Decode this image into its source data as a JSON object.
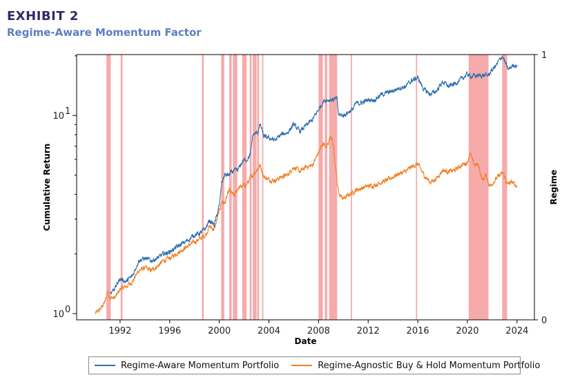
{
  "header": {
    "exhibit": "EXHIBIT 2",
    "title": "Regime-Aware Momentum Factor"
  },
  "colors": {
    "regime_aware": "#2e6fae",
    "buy_hold": "#f07f22",
    "regime_band": "#f6aaaa",
    "title_dark": "#2e2a6b",
    "title_blue": "#5b7fc0"
  },
  "chart_data": {
    "type": "line",
    "xlabel": "Date",
    "ylabel": "Cumulative Return",
    "y2label": "Regime",
    "x_range": [
      1988.5,
      2025.4
    ],
    "y_scale": "log",
    "y_range": [
      0.93,
      20.3
    ],
    "y_ticks": [
      {
        "value": 1,
        "base": "10",
        "exp": "0"
      },
      {
        "value": 10,
        "base": "10",
        "exp": "1"
      }
    ],
    "y2_range": [
      0,
      1
    ],
    "y2_ticks": [
      "0",
      "1"
    ],
    "x_ticks": [
      "1992",
      "1996",
      "2000",
      "2004",
      "2008",
      "2012",
      "2016",
      "2020",
      "2024"
    ],
    "grid": false,
    "legend_position": "bottom",
    "regime_periods": [
      [
        1990.9,
        1991.25
      ],
      [
        1992.05,
        1992.2
      ],
      [
        1998.6,
        1998.75
      ],
      [
        2000.15,
        2000.4
      ],
      [
        2000.8,
        2001.0
      ],
      [
        2001.1,
        2001.45
      ],
      [
        2001.85,
        2002.2
      ],
      [
        2002.45,
        2002.6
      ],
      [
        2002.7,
        2003.0
      ],
      [
        2003.05,
        2003.2
      ],
      [
        2003.45,
        2003.55
      ],
      [
        2008.0,
        2008.35
      ],
      [
        2008.5,
        2008.7
      ],
      [
        2008.85,
        2009.5
      ],
      [
        2010.6,
        2010.7
      ],
      [
        2015.85,
        2015.95
      ],
      [
        2020.1,
        2021.7
      ],
      [
        2022.8,
        2023.2
      ]
    ],
    "series": [
      {
        "name": "Regime-Aware Momentum Portfolio",
        "color": "#2e6fae",
        "points": [
          [
            1991.2,
            1.27
          ],
          [
            1991.6,
            1.35
          ],
          [
            1992.0,
            1.5
          ],
          [
            1992.5,
            1.45
          ],
          [
            1993.0,
            1.55
          ],
          [
            1993.5,
            1.85
          ],
          [
            1994.0,
            1.9
          ],
          [
            1994.5,
            1.85
          ],
          [
            1995.0,
            1.9
          ],
          [
            1995.5,
            2.0
          ],
          [
            1996.0,
            2.05
          ],
          [
            1996.5,
            2.15
          ],
          [
            1997.0,
            2.25
          ],
          [
            1997.5,
            2.35
          ],
          [
            1998.0,
            2.5
          ],
          [
            1998.5,
            2.55
          ],
          [
            1998.9,
            2.7
          ],
          [
            1999.2,
            2.95
          ],
          [
            1999.6,
            2.8
          ],
          [
            2000.0,
            3.5
          ],
          [
            2000.2,
            4.6
          ],
          [
            2000.45,
            5.0
          ],
          [
            2000.8,
            5.0
          ],
          [
            2001.0,
            5.2
          ],
          [
            2001.5,
            5.3
          ],
          [
            2001.9,
            5.9
          ],
          [
            2002.2,
            6.0
          ],
          [
            2002.5,
            6.3
          ],
          [
            2002.7,
            8.0
          ],
          [
            2003.1,
            8.2
          ],
          [
            2003.3,
            9.0
          ],
          [
            2003.6,
            7.8
          ],
          [
            2004.0,
            7.7
          ],
          [
            2004.5,
            7.5
          ],
          [
            2005.0,
            8.0
          ],
          [
            2005.5,
            8.2
          ],
          [
            2006.0,
            9.0
          ],
          [
            2006.5,
            8.3
          ],
          [
            2007.0,
            8.9
          ],
          [
            2007.5,
            9.5
          ],
          [
            2008.0,
            10.7
          ],
          [
            2008.4,
            11.8
          ],
          [
            2008.6,
            12.0
          ],
          [
            2009.0,
            12.0
          ],
          [
            2009.5,
            12.1
          ],
          [
            2009.6,
            10.1
          ],
          [
            2010.0,
            10.0
          ],
          [
            2010.5,
            10.5
          ],
          [
            2010.8,
            10.8
          ],
          [
            2011.0,
            11.5
          ],
          [
            2011.5,
            11.6
          ],
          [
            2012.0,
            12.0
          ],
          [
            2012.5,
            12.0
          ],
          [
            2013.0,
            12.7
          ],
          [
            2013.5,
            13.0
          ],
          [
            2014.0,
            13.3
          ],
          [
            2014.5,
            13.8
          ],
          [
            2015.0,
            14.0
          ],
          [
            2015.5,
            15.0
          ],
          [
            2016.0,
            15.5
          ],
          [
            2016.5,
            13.5
          ],
          [
            2017.0,
            12.8
          ],
          [
            2017.5,
            13.3
          ],
          [
            2018.0,
            14.8
          ],
          [
            2018.5,
            14.0
          ],
          [
            2019.0,
            14.5
          ],
          [
            2019.5,
            15.2
          ],
          [
            2020.0,
            16.2
          ],
          [
            2020.2,
            15.8
          ],
          [
            2021.7,
            16.0
          ],
          [
            2022.0,
            17.0
          ],
          [
            2022.4,
            18.2
          ],
          [
            2022.8,
            20.0
          ],
          [
            2023.3,
            17.0
          ],
          [
            2023.7,
            18.0
          ],
          [
            2024.0,
            17.8
          ]
        ]
      },
      {
        "name": "Regime-Agnostic Buy & Hold Momentum Portfolio",
        "color": "#f07f22",
        "points": [
          [
            1990.0,
            1.0
          ],
          [
            1990.4,
            1.05
          ],
          [
            1990.8,
            1.15
          ],
          [
            1991.0,
            1.3
          ],
          [
            1991.2,
            1.2
          ],
          [
            1991.6,
            1.2
          ],
          [
            1992.0,
            1.33
          ],
          [
            1992.5,
            1.37
          ],
          [
            1993.0,
            1.45
          ],
          [
            1993.5,
            1.65
          ],
          [
            1994.0,
            1.7
          ],
          [
            1994.5,
            1.65
          ],
          [
            1995.0,
            1.73
          ],
          [
            1995.5,
            1.85
          ],
          [
            1996.0,
            1.9
          ],
          [
            1996.5,
            2.0
          ],
          [
            1997.0,
            2.1
          ],
          [
            1997.5,
            2.2
          ],
          [
            1998.0,
            2.3
          ],
          [
            1998.5,
            2.4
          ],
          [
            1998.9,
            2.5
          ],
          [
            1999.2,
            2.75
          ],
          [
            1999.6,
            2.65
          ],
          [
            2000.0,
            3.3
          ],
          [
            2000.2,
            3.7
          ],
          [
            2000.45,
            3.6
          ],
          [
            2000.8,
            4.2
          ],
          [
            2001.2,
            3.9
          ],
          [
            2001.5,
            4.3
          ],
          [
            2001.9,
            4.4
          ],
          [
            2002.2,
            4.5
          ],
          [
            2002.5,
            4.8
          ],
          [
            2002.7,
            5.0
          ],
          [
            2003.1,
            5.4
          ],
          [
            2003.3,
            5.6
          ],
          [
            2003.6,
            4.9
          ],
          [
            2004.0,
            4.75
          ],
          [
            2004.5,
            4.7
          ],
          [
            2005.0,
            4.9
          ],
          [
            2005.5,
            5.0
          ],
          [
            2006.0,
            5.5
          ],
          [
            2006.5,
            5.2
          ],
          [
            2007.0,
            5.5
          ],
          [
            2007.5,
            5.6
          ],
          [
            2008.0,
            6.5
          ],
          [
            2008.4,
            7.3
          ],
          [
            2008.6,
            6.8
          ],
          [
            2009.0,
            8.0
          ],
          [
            2009.2,
            7.0
          ],
          [
            2009.5,
            4.5
          ],
          [
            2009.7,
            3.95
          ],
          [
            2010.0,
            3.8
          ],
          [
            2010.5,
            4.0
          ],
          [
            2010.8,
            4.1
          ],
          [
            2011.0,
            4.2
          ],
          [
            2011.5,
            4.3
          ],
          [
            2012.0,
            4.4
          ],
          [
            2012.5,
            4.45
          ],
          [
            2013.0,
            4.6
          ],
          [
            2013.5,
            4.7
          ],
          [
            2014.0,
            4.9
          ],
          [
            2014.5,
            5.1
          ],
          [
            2015.0,
            5.2
          ],
          [
            2015.5,
            5.5
          ],
          [
            2016.0,
            5.7
          ],
          [
            2016.5,
            5.0
          ],
          [
            2017.0,
            4.6
          ],
          [
            2017.5,
            4.8
          ],
          [
            2018.0,
            5.3
          ],
          [
            2018.5,
            5.2
          ],
          [
            2019.0,
            5.3
          ],
          [
            2019.5,
            5.6
          ],
          [
            2020.0,
            5.8
          ],
          [
            2020.2,
            6.5
          ],
          [
            2020.5,
            5.7
          ],
          [
            2020.9,
            5.6
          ],
          [
            2021.2,
            4.7
          ],
          [
            2021.5,
            5.0
          ],
          [
            2021.8,
            4.4
          ],
          [
            2022.2,
            4.7
          ],
          [
            2022.6,
            5.0
          ],
          [
            2022.9,
            5.1
          ],
          [
            2023.2,
            4.5
          ],
          [
            2023.6,
            4.6
          ],
          [
            2024.0,
            4.4
          ]
        ]
      }
    ]
  }
}
